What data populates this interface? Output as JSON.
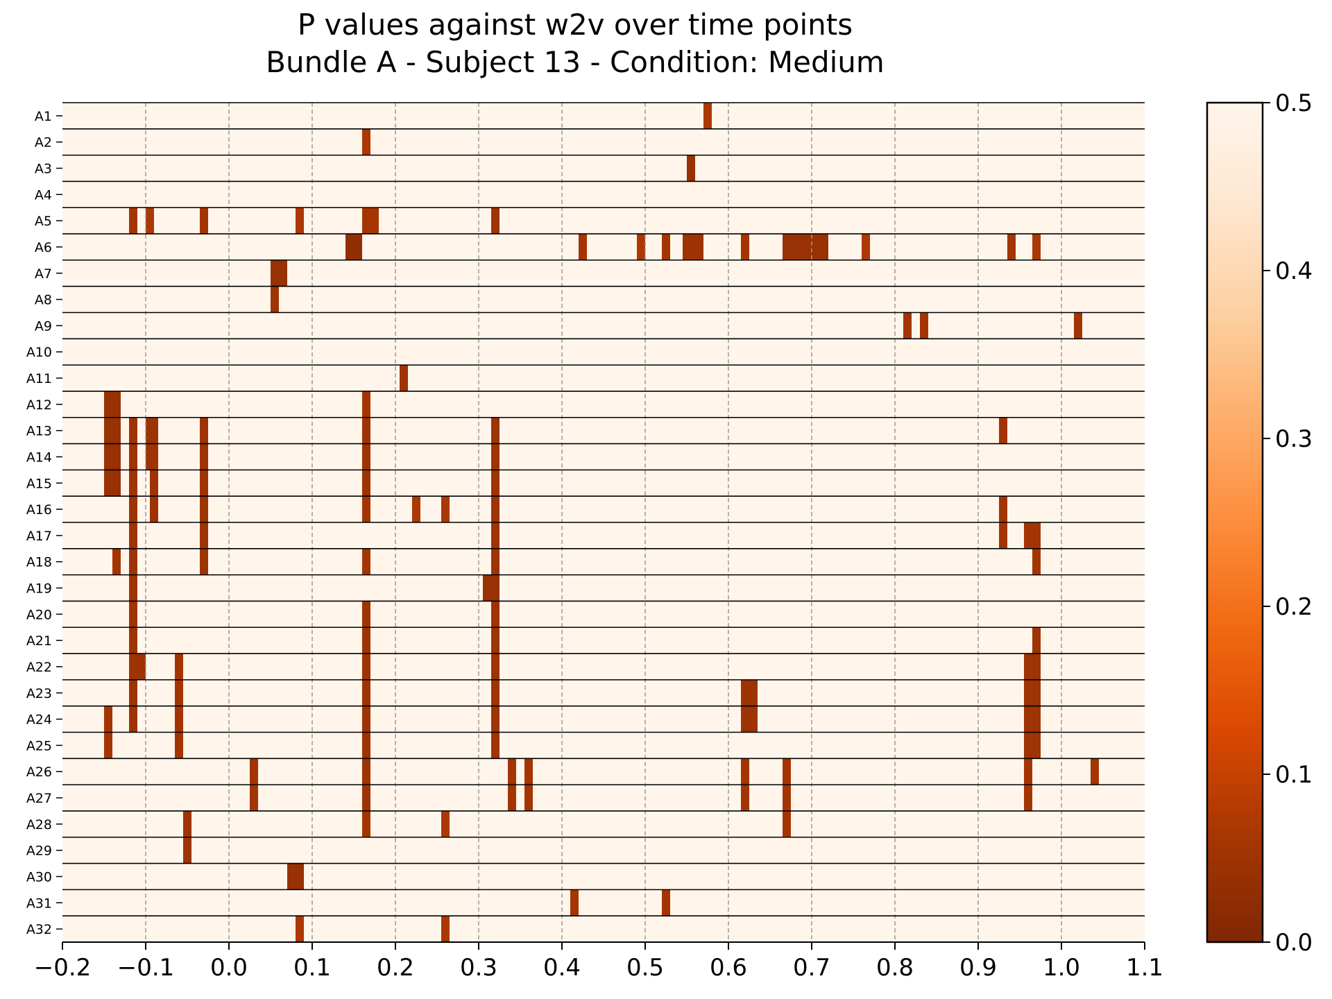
{
  "chart_data": {
    "type": "heatmap",
    "title": "P values against w2v over time points",
    "subtitle": "Bundle A - Subject 13 - Condition: Medium",
    "xlim": [
      -0.2,
      1.1
    ],
    "x_ticks": [
      -0.2,
      -0.1,
      0.0,
      0.1,
      0.2,
      0.3,
      0.4,
      0.5,
      0.6,
      0.7,
      0.8,
      0.9,
      1.0,
      1.1
    ],
    "x_tick_labels": [
      "−0.2",
      "−0.1",
      "0.0",
      "0.1",
      "0.2",
      "0.3",
      "0.4",
      "0.5",
      "0.6",
      "0.7",
      "0.8",
      "0.9",
      "1.0",
      "1.1"
    ],
    "vertical_grid": "dashed",
    "rows": [
      "A1",
      "A2",
      "A3",
      "A4",
      "A5",
      "A6",
      "A7",
      "A8",
      "A9",
      "A10",
      "A11",
      "A12",
      "A13",
      "A14",
      "A15",
      "A16",
      "A17",
      "A18",
      "A19",
      "A20",
      "A21",
      "A22",
      "A23",
      "A24",
      "A25",
      "A26",
      "A27",
      "A28",
      "A29",
      "A30",
      "A31",
      "A32"
    ],
    "background_p": 0.5,
    "colorbar": {
      "range": [
        0.0,
        0.5
      ],
      "ticks": [
        0.0,
        0.1,
        0.2,
        0.3,
        0.4,
        0.5
      ],
      "tick_labels": [
        "0.0",
        "0.1",
        "0.2",
        "0.3",
        "0.4",
        "0.5"
      ],
      "colormap": "Oranges_r",
      "position": "right"
    },
    "significant_cells": [
      {
        "row": "A1",
        "x0": 0.57,
        "x1": 0.58,
        "p": 0.07
      },
      {
        "row": "A2",
        "x0": 0.16,
        "x1": 0.17,
        "p": 0.07
      },
      {
        "row": "A3",
        "x0": 0.55,
        "x1": 0.56,
        "p": 0.04
      },
      {
        "row": "A5",
        "x0": -0.12,
        "x1": -0.11,
        "p": 0.06
      },
      {
        "row": "A5",
        "x0": -0.1,
        "x1": -0.09,
        "p": 0.07
      },
      {
        "row": "A5",
        "x0": -0.035,
        "x1": -0.025,
        "p": 0.06
      },
      {
        "row": "A5",
        "x0": 0.08,
        "x1": 0.09,
        "p": 0.07
      },
      {
        "row": "A5",
        "x0": 0.16,
        "x1": 0.18,
        "p": 0.06
      },
      {
        "row": "A5",
        "x0": 0.315,
        "x1": 0.325,
        "p": 0.05
      },
      {
        "row": "A6",
        "x0": 0.14,
        "x1": 0.16,
        "p": 0.03
      },
      {
        "row": "A6",
        "x0": 0.42,
        "x1": 0.43,
        "p": 0.06
      },
      {
        "row": "A6",
        "x0": 0.49,
        "x1": 0.5,
        "p": 0.07
      },
      {
        "row": "A6",
        "x0": 0.52,
        "x1": 0.53,
        "p": 0.06
      },
      {
        "row": "A6",
        "x0": 0.545,
        "x1": 0.57,
        "p": 0.05
      },
      {
        "row": "A6",
        "x0": 0.615,
        "x1": 0.625,
        "p": 0.06
      },
      {
        "row": "A6",
        "x0": 0.665,
        "x1": 0.72,
        "p": 0.04
      },
      {
        "row": "A6",
        "x0": 0.76,
        "x1": 0.77,
        "p": 0.07
      },
      {
        "row": "A6",
        "x0": 0.935,
        "x1": 0.945,
        "p": 0.06
      },
      {
        "row": "A6",
        "x0": 0.965,
        "x1": 0.975,
        "p": 0.07
      },
      {
        "row": "A7",
        "x0": 0.05,
        "x1": 0.07,
        "p": 0.04
      },
      {
        "row": "A8",
        "x0": 0.05,
        "x1": 0.06,
        "p": 0.05
      },
      {
        "row": "A9",
        "x0": 0.81,
        "x1": 0.82,
        "p": 0.06
      },
      {
        "row": "A9",
        "x0": 0.83,
        "x1": 0.84,
        "p": 0.06
      },
      {
        "row": "A9",
        "x0": 1.015,
        "x1": 1.025,
        "p": 0.06
      },
      {
        "row": "A11",
        "x0": 0.205,
        "x1": 0.215,
        "p": 0.05
      },
      {
        "row": "A12",
        "x0": -0.15,
        "x1": -0.13,
        "p": 0.04
      },
      {
        "row": "A12",
        "x0": 0.16,
        "x1": 0.17,
        "p": 0.06
      },
      {
        "row": "A13",
        "x0": -0.15,
        "x1": -0.13,
        "p": 0.04
      },
      {
        "row": "A13",
        "x0": -0.12,
        "x1": -0.11,
        "p": 0.05
      },
      {
        "row": "A13",
        "x0": -0.1,
        "x1": -0.085,
        "p": 0.05
      },
      {
        "row": "A13",
        "x0": -0.035,
        "x1": -0.025,
        "p": 0.05
      },
      {
        "row": "A13",
        "x0": 0.16,
        "x1": 0.17,
        "p": 0.05
      },
      {
        "row": "A13",
        "x0": 0.315,
        "x1": 0.325,
        "p": 0.05
      },
      {
        "row": "A13",
        "x0": 0.925,
        "x1": 0.935,
        "p": 0.06
      },
      {
        "row": "A14",
        "x0": -0.15,
        "x1": -0.13,
        "p": 0.04
      },
      {
        "row": "A14",
        "x0": -0.12,
        "x1": -0.11,
        "p": 0.05
      },
      {
        "row": "A14",
        "x0": -0.1,
        "x1": -0.085,
        "p": 0.05
      },
      {
        "row": "A14",
        "x0": -0.035,
        "x1": -0.025,
        "p": 0.05
      },
      {
        "row": "A14",
        "x0": 0.16,
        "x1": 0.17,
        "p": 0.05
      },
      {
        "row": "A14",
        "x0": 0.315,
        "x1": 0.325,
        "p": 0.05
      },
      {
        "row": "A15",
        "x0": -0.15,
        "x1": -0.13,
        "p": 0.04
      },
      {
        "row": "A15",
        "x0": -0.12,
        "x1": -0.11,
        "p": 0.05
      },
      {
        "row": "A15",
        "x0": -0.095,
        "x1": -0.085,
        "p": 0.05
      },
      {
        "row": "A15",
        "x0": -0.035,
        "x1": -0.025,
        "p": 0.05
      },
      {
        "row": "A15",
        "x0": 0.16,
        "x1": 0.17,
        "p": 0.05
      },
      {
        "row": "A15",
        "x0": 0.315,
        "x1": 0.325,
        "p": 0.05
      },
      {
        "row": "A16",
        "x0": -0.12,
        "x1": -0.11,
        "p": 0.05
      },
      {
        "row": "A16",
        "x0": -0.095,
        "x1": -0.085,
        "p": 0.05
      },
      {
        "row": "A16",
        "x0": -0.035,
        "x1": -0.025,
        "p": 0.05
      },
      {
        "row": "A16",
        "x0": 0.16,
        "x1": 0.17,
        "p": 0.06
      },
      {
        "row": "A16",
        "x0": 0.22,
        "x1": 0.23,
        "p": 0.07
      },
      {
        "row": "A16",
        "x0": 0.255,
        "x1": 0.265,
        "p": 0.07
      },
      {
        "row": "A16",
        "x0": 0.315,
        "x1": 0.325,
        "p": 0.05
      },
      {
        "row": "A16",
        "x0": 0.925,
        "x1": 0.935,
        "p": 0.06
      },
      {
        "row": "A17",
        "x0": -0.12,
        "x1": -0.11,
        "p": 0.05
      },
      {
        "row": "A17",
        "x0": -0.035,
        "x1": -0.025,
        "p": 0.05
      },
      {
        "row": "A17",
        "x0": 0.315,
        "x1": 0.325,
        "p": 0.05
      },
      {
        "row": "A17",
        "x0": 0.925,
        "x1": 0.935,
        "p": 0.06
      },
      {
        "row": "A17",
        "x0": 0.955,
        "x1": 0.975,
        "p": 0.06
      },
      {
        "row": "A18",
        "x0": -0.14,
        "x1": -0.13,
        "p": 0.06
      },
      {
        "row": "A18",
        "x0": -0.12,
        "x1": -0.11,
        "p": 0.05
      },
      {
        "row": "A18",
        "x0": -0.035,
        "x1": -0.025,
        "p": 0.05
      },
      {
        "row": "A18",
        "x0": 0.16,
        "x1": 0.17,
        "p": 0.06
      },
      {
        "row": "A18",
        "x0": 0.315,
        "x1": 0.325,
        "p": 0.05
      },
      {
        "row": "A18",
        "x0": 0.965,
        "x1": 0.975,
        "p": 0.06
      },
      {
        "row": "A19",
        "x0": -0.12,
        "x1": -0.11,
        "p": 0.05
      },
      {
        "row": "A19",
        "x0": 0.305,
        "x1": 0.325,
        "p": 0.04
      },
      {
        "row": "A20",
        "x0": -0.12,
        "x1": -0.11,
        "p": 0.05
      },
      {
        "row": "A20",
        "x0": 0.16,
        "x1": 0.17,
        "p": 0.05
      },
      {
        "row": "A20",
        "x0": 0.315,
        "x1": 0.325,
        "p": 0.05
      },
      {
        "row": "A21",
        "x0": -0.12,
        "x1": -0.11,
        "p": 0.05
      },
      {
        "row": "A21",
        "x0": 0.16,
        "x1": 0.17,
        "p": 0.05
      },
      {
        "row": "A21",
        "x0": 0.315,
        "x1": 0.325,
        "p": 0.05
      },
      {
        "row": "A21",
        "x0": 0.965,
        "x1": 0.975,
        "p": 0.05
      },
      {
        "row": "A22",
        "x0": -0.12,
        "x1": -0.1,
        "p": 0.05
      },
      {
        "row": "A22",
        "x0": -0.065,
        "x1": -0.055,
        "p": 0.06
      },
      {
        "row": "A22",
        "x0": 0.16,
        "x1": 0.17,
        "p": 0.05
      },
      {
        "row": "A22",
        "x0": 0.315,
        "x1": 0.325,
        "p": 0.05
      },
      {
        "row": "A22",
        "x0": 0.955,
        "x1": 0.975,
        "p": 0.05
      },
      {
        "row": "A23",
        "x0": -0.12,
        "x1": -0.11,
        "p": 0.05
      },
      {
        "row": "A23",
        "x0": -0.065,
        "x1": -0.055,
        "p": 0.06
      },
      {
        "row": "A23",
        "x0": 0.16,
        "x1": 0.17,
        "p": 0.05
      },
      {
        "row": "A23",
        "x0": 0.315,
        "x1": 0.325,
        "p": 0.05
      },
      {
        "row": "A23",
        "x0": 0.615,
        "x1": 0.635,
        "p": 0.05
      },
      {
        "row": "A23",
        "x0": 0.955,
        "x1": 0.975,
        "p": 0.05
      },
      {
        "row": "A24",
        "x0": -0.15,
        "x1": -0.14,
        "p": 0.06
      },
      {
        "row": "A24",
        "x0": -0.12,
        "x1": -0.11,
        "p": 0.05
      },
      {
        "row": "A24",
        "x0": -0.065,
        "x1": -0.055,
        "p": 0.06
      },
      {
        "row": "A24",
        "x0": 0.16,
        "x1": 0.17,
        "p": 0.05
      },
      {
        "row": "A24",
        "x0": 0.315,
        "x1": 0.325,
        "p": 0.05
      },
      {
        "row": "A24",
        "x0": 0.615,
        "x1": 0.635,
        "p": 0.05
      },
      {
        "row": "A24",
        "x0": 0.955,
        "x1": 0.975,
        "p": 0.05
      },
      {
        "row": "A25",
        "x0": -0.15,
        "x1": -0.14,
        "p": 0.06
      },
      {
        "row": "A25",
        "x0": -0.065,
        "x1": -0.055,
        "p": 0.06
      },
      {
        "row": "A25",
        "x0": 0.16,
        "x1": 0.17,
        "p": 0.05
      },
      {
        "row": "A25",
        "x0": 0.315,
        "x1": 0.325,
        "p": 0.05
      },
      {
        "row": "A25",
        "x0": 0.955,
        "x1": 0.975,
        "p": 0.05
      },
      {
        "row": "A26",
        "x0": 0.025,
        "x1": 0.035,
        "p": 0.06
      },
      {
        "row": "A26",
        "x0": 0.16,
        "x1": 0.17,
        "p": 0.05
      },
      {
        "row": "A26",
        "x0": 0.335,
        "x1": 0.345,
        "p": 0.06
      },
      {
        "row": "A26",
        "x0": 0.355,
        "x1": 0.365,
        "p": 0.06
      },
      {
        "row": "A26",
        "x0": 0.615,
        "x1": 0.625,
        "p": 0.06
      },
      {
        "row": "A26",
        "x0": 0.665,
        "x1": 0.675,
        "p": 0.06
      },
      {
        "row": "A26",
        "x0": 0.955,
        "x1": 0.965,
        "p": 0.06
      },
      {
        "row": "A26",
        "x0": 1.035,
        "x1": 1.045,
        "p": 0.06
      },
      {
        "row": "A27",
        "x0": 0.025,
        "x1": 0.035,
        "p": 0.06
      },
      {
        "row": "A27",
        "x0": 0.16,
        "x1": 0.17,
        "p": 0.05
      },
      {
        "row": "A27",
        "x0": 0.335,
        "x1": 0.345,
        "p": 0.06
      },
      {
        "row": "A27",
        "x0": 0.355,
        "x1": 0.365,
        "p": 0.06
      },
      {
        "row": "A27",
        "x0": 0.615,
        "x1": 0.625,
        "p": 0.06
      },
      {
        "row": "A27",
        "x0": 0.665,
        "x1": 0.675,
        "p": 0.06
      },
      {
        "row": "A27",
        "x0": 0.955,
        "x1": 0.965,
        "p": 0.06
      },
      {
        "row": "A28",
        "x0": -0.055,
        "x1": -0.045,
        "p": 0.05
      },
      {
        "row": "A28",
        "x0": 0.16,
        "x1": 0.17,
        "p": 0.06
      },
      {
        "row": "A28",
        "x0": 0.255,
        "x1": 0.265,
        "p": 0.07
      },
      {
        "row": "A28",
        "x0": 0.665,
        "x1": 0.675,
        "p": 0.06
      },
      {
        "row": "A29",
        "x0": -0.055,
        "x1": -0.045,
        "p": 0.05
      },
      {
        "row": "A30",
        "x0": 0.07,
        "x1": 0.09,
        "p": 0.04
      },
      {
        "row": "A31",
        "x0": 0.41,
        "x1": 0.42,
        "p": 0.06
      },
      {
        "row": "A31",
        "x0": 0.52,
        "x1": 0.53,
        "p": 0.06
      },
      {
        "row": "A32",
        "x0": 0.08,
        "x1": 0.09,
        "p": 0.07
      },
      {
        "row": "A32",
        "x0": 0.255,
        "x1": 0.265,
        "p": 0.07
      }
    ]
  }
}
